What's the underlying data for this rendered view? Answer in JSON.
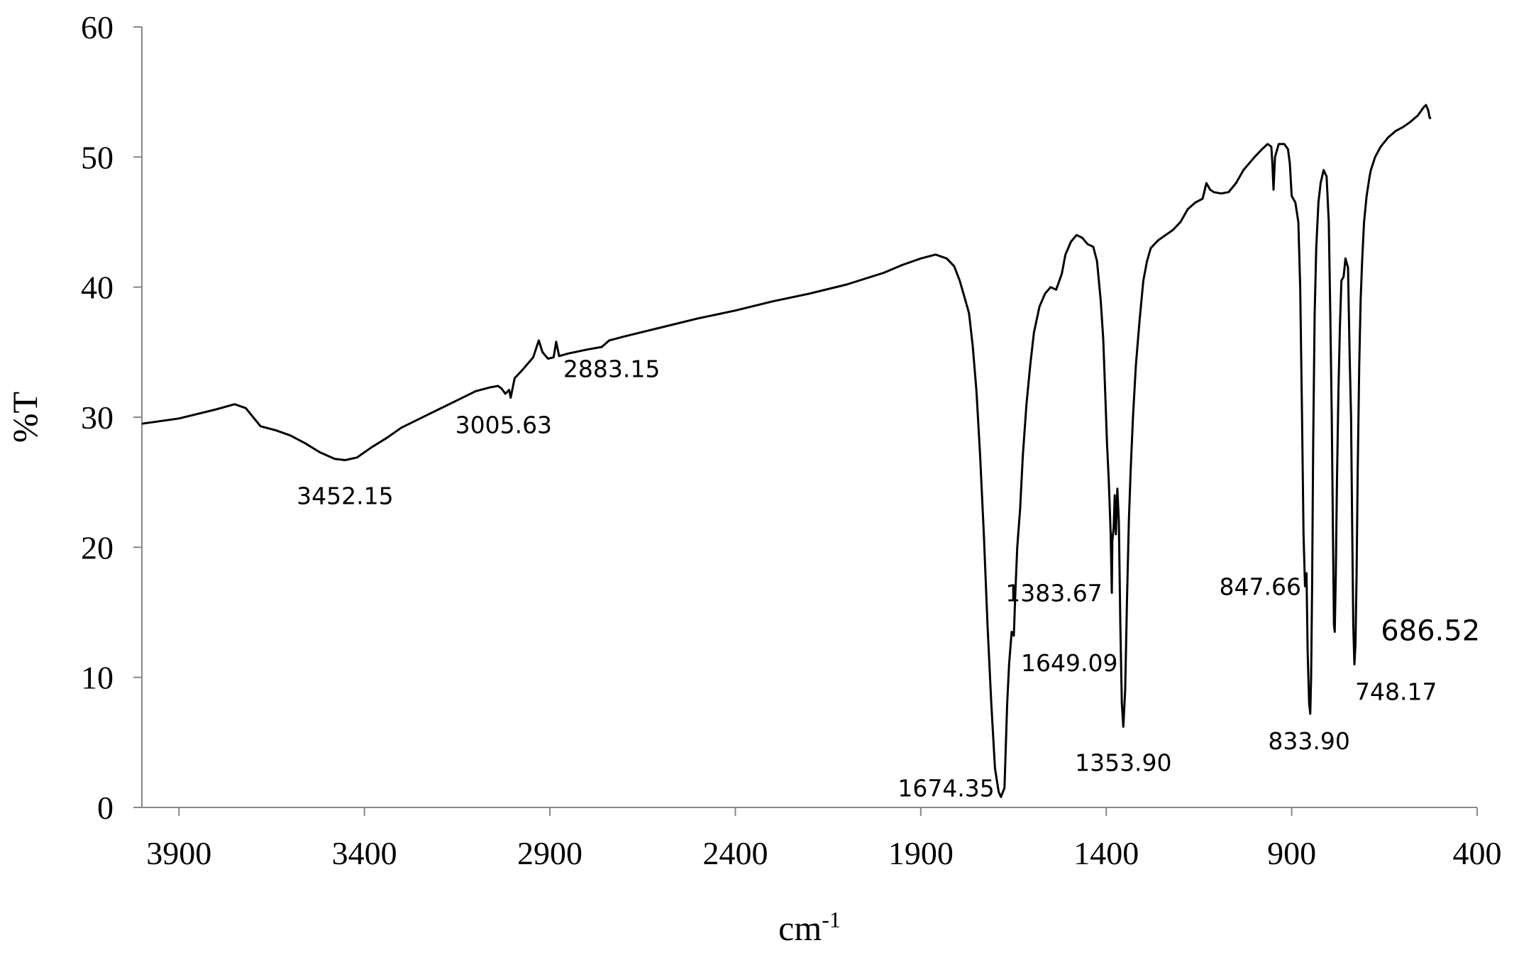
{
  "chart_data": {
    "type": "line",
    "xlabel": "cm",
    "xlabel_superscript": "-1",
    "ylabel": "%T",
    "xlim": [
      4000,
      400
    ],
    "ylim": [
      0,
      60
    ],
    "x_reversed": true,
    "grid": false,
    "x_ticks": [
      3900,
      3400,
      2900,
      2400,
      1900,
      1400,
      900,
      400
    ],
    "y_ticks": [
      0,
      10,
      20,
      30,
      40,
      50,
      60
    ],
    "series": [
      {
        "points": [
          [
            4000,
            29.5
          ],
          [
            3900,
            29.9
          ],
          [
            3800,
            30.6
          ],
          [
            3750,
            31.0
          ],
          [
            3720,
            30.7
          ],
          [
            3700,
            30.0
          ],
          [
            3680,
            29.3
          ],
          [
            3640,
            29.0
          ],
          [
            3600,
            28.6
          ],
          [
            3560,
            28.0
          ],
          [
            3520,
            27.3
          ],
          [
            3480,
            26.8
          ],
          [
            3452.15,
            26.7
          ],
          [
            3420,
            26.9
          ],
          [
            3380,
            27.7
          ],
          [
            3340,
            28.4
          ],
          [
            3300,
            29.2
          ],
          [
            3250,
            29.9
          ],
          [
            3200,
            30.6
          ],
          [
            3150,
            31.3
          ],
          [
            3100,
            32.0
          ],
          [
            3060,
            32.3
          ],
          [
            3040,
            32.4
          ],
          [
            3030,
            32.2
          ],
          [
            3020,
            31.8
          ],
          [
            3010,
            32.1
          ],
          [
            3005.63,
            31.5
          ],
          [
            2995,
            33.0
          ],
          [
            2975,
            33.6
          ],
          [
            2960,
            34.1
          ],
          [
            2945,
            34.6
          ],
          [
            2930,
            35.9
          ],
          [
            2920,
            35.0
          ],
          [
            2905,
            34.5
          ],
          [
            2890,
            34.6
          ],
          [
            2883.15,
            35.8
          ],
          [
            2875,
            34.7
          ],
          [
            2850,
            34.9
          ],
          [
            2800,
            35.2
          ],
          [
            2760,
            35.4
          ],
          [
            2740,
            35.9
          ],
          [
            2700,
            36.2
          ],
          [
            2600,
            36.9
          ],
          [
            2500,
            37.6
          ],
          [
            2400,
            38.2
          ],
          [
            2300,
            38.9
          ],
          [
            2200,
            39.5
          ],
          [
            2100,
            40.2
          ],
          [
            2000,
            41.1
          ],
          [
            1950,
            41.7
          ],
          [
            1900,
            42.2
          ],
          [
            1860,
            42.5
          ],
          [
            1830,
            42.2
          ],
          [
            1810,
            41.6
          ],
          [
            1795,
            40.5
          ],
          [
            1780,
            39.0
          ],
          [
            1770,
            38.0
          ],
          [
            1760,
            35.5
          ],
          [
            1750,
            32.0
          ],
          [
            1740,
            27.0
          ],
          [
            1730,
            21.0
          ],
          [
            1720,
            14.0
          ],
          [
            1710,
            8.0
          ],
          [
            1700,
            3.0
          ],
          [
            1690,
            1.2
          ],
          [
            1684,
            0.8
          ],
          [
            1674.35,
            1.5
          ],
          [
            1667,
            8.0
          ],
          [
            1662,
            11.0
          ],
          [
            1655,
            13.5
          ],
          [
            1649.09,
            13.2
          ],
          [
            1645,
            16.5
          ],
          [
            1640,
            20.0
          ],
          [
            1632,
            23.0
          ],
          [
            1625,
            27.0
          ],
          [
            1615,
            31.0
          ],
          [
            1605,
            34.0
          ],
          [
            1595,
            36.5
          ],
          [
            1580,
            38.5
          ],
          [
            1565,
            39.5
          ],
          [
            1550,
            40.0
          ],
          [
            1535,
            39.8
          ],
          [
            1520,
            41.0
          ],
          [
            1510,
            42.5
          ],
          [
            1495,
            43.5
          ],
          [
            1480,
            44.0
          ],
          [
            1465,
            43.8
          ],
          [
            1450,
            43.3
          ],
          [
            1435,
            43.1
          ],
          [
            1425,
            42.0
          ],
          [
            1415,
            39.0
          ],
          [
            1408,
            36.0
          ],
          [
            1403,
            32.0
          ],
          [
            1398,
            28.0
          ],
          [
            1393,
            25.0
          ],
          [
            1388,
            21.0
          ],
          [
            1385,
            16.5
          ],
          [
            1383.67,
            20.5
          ],
          [
            1380,
            21.5
          ],
          [
            1377,
            24.0
          ],
          [
            1374,
            21.0
          ],
          [
            1370,
            24.5
          ],
          [
            1366,
            22.0
          ],
          [
            1362,
            14.0
          ],
          [
            1358,
            8.0
          ],
          [
            1353.9,
            6.2
          ],
          [
            1349,
            9.0
          ],
          [
            1344,
            16.0
          ],
          [
            1339,
            22.0
          ],
          [
            1334,
            26.0
          ],
          [
            1328,
            30.0
          ],
          [
            1320,
            34.0
          ],
          [
            1310,
            37.5
          ],
          [
            1300,
            40.5
          ],
          [
            1290,
            42.0
          ],
          [
            1280,
            43.0
          ],
          [
            1260,
            43.6
          ],
          [
            1240,
            44.0
          ],
          [
            1220,
            44.4
          ],
          [
            1200,
            45.0
          ],
          [
            1180,
            46.0
          ],
          [
            1160,
            46.5
          ],
          [
            1140,
            46.8
          ],
          [
            1130,
            48.0
          ],
          [
            1120,
            47.5
          ],
          [
            1110,
            47.3
          ],
          [
            1090,
            47.2
          ],
          [
            1070,
            47.3
          ],
          [
            1050,
            48.0
          ],
          [
            1030,
            49.0
          ],
          [
            1000,
            50.0
          ],
          [
            980,
            50.6
          ],
          [
            965,
            51.0
          ],
          [
            955,
            50.8
          ],
          [
            952,
            49.5
          ],
          [
            949,
            47.5
          ],
          [
            945,
            50.0
          ],
          [
            935,
            51.0
          ],
          [
            920,
            51.0
          ],
          [
            910,
            50.6
          ],
          [
            905,
            49.5
          ],
          [
            900,
            47.0
          ],
          [
            890,
            46.5
          ],
          [
            882,
            45.0
          ],
          [
            877,
            40.0
          ],
          [
            872,
            30.0
          ],
          [
            868,
            21.0
          ],
          [
            864,
            17.0
          ],
          [
            860,
            18.0
          ],
          [
            857,
            12.0
          ],
          [
            853,
            8.0
          ],
          [
            850,
            7.2
          ],
          [
            847.66,
            10.0
          ],
          [
            845,
            17.0
          ],
          [
            842,
            28.0
          ],
          [
            838,
            38.0
          ],
          [
            833.9,
            43.0
          ],
          [
            828,
            46.5
          ],
          [
            822,
            48.0
          ],
          [
            814,
            49.0
          ],
          [
            806,
            48.5
          ],
          [
            800,
            45.0
          ],
          [
            796,
            38.0
          ],
          [
            792,
            30.0
          ],
          [
            789,
            22.0
          ],
          [
            786,
            14.0
          ],
          [
            784,
            13.5
          ],
          [
            781,
            18.0
          ],
          [
            778,
            25.0
          ],
          [
            774,
            32.0
          ],
          [
            770,
            37.0
          ],
          [
            766,
            40.5
          ],
          [
            760,
            40.8
          ],
          [
            755,
            42.2
          ],
          [
            748.17,
            41.5
          ],
          [
            744,
            35.0
          ],
          [
            740,
            30.0
          ],
          [
            737,
            22.0
          ],
          [
            734,
            14.0
          ],
          [
            731,
            11.0
          ],
          [
            728,
            12.5
          ],
          [
            725,
            18.0
          ],
          [
            722,
            26.0
          ],
          [
            718,
            34.0
          ],
          [
            714,
            39.0
          ],
          [
            710,
            42.0
          ],
          [
            705,
            45.0
          ],
          [
            698,
            47.0
          ],
          [
            690,
            48.5
          ],
          [
            686.52,
            49.0
          ],
          [
            675,
            50.0
          ],
          [
            660,
            50.8
          ],
          [
            640,
            51.5
          ],
          [
            620,
            52.0
          ],
          [
            600,
            52.3
          ],
          [
            580,
            52.7
          ],
          [
            560,
            53.2
          ],
          [
            545,
            53.8
          ],
          [
            538,
            54.0
          ],
          [
            532,
            53.6
          ],
          [
            528,
            53.0
          ],
          [
            524,
            53.0
          ]
        ]
      }
    ],
    "annotations": [
      {
        "text": "3452.15",
        "x": 3452.15,
        "y": 26.7,
        "anchor": "below-center"
      },
      {
        "text": "3005.63",
        "x": 3005.63,
        "y": 31.5,
        "anchor": "below-left"
      },
      {
        "text": "2883.15",
        "x": 2883.15,
        "y": 35.8,
        "anchor": "below-right"
      },
      {
        "text": "1674.35",
        "x": 1674.35,
        "y": 1.5,
        "anchor": "left"
      },
      {
        "text": "1649.09",
        "x": 1649.09,
        "y": 13.2,
        "anchor": "below-right"
      },
      {
        "text": "1383.67",
        "x": 1383.67,
        "y": 16.5,
        "anchor": "left"
      },
      {
        "text": "1353.90",
        "x": 1353.9,
        "y": 6.2,
        "anchor": "below-center"
      },
      {
        "text": "847.66",
        "x": 847.66,
        "y": 17.0,
        "anchor": "left"
      },
      {
        "text": "833.90",
        "x": 833.9,
        "y": 7.2,
        "anchor": "below-left"
      },
      {
        "text": "748.17",
        "x": 748.17,
        "y": 11.0,
        "anchor": "below-right"
      },
      {
        "text": "686.52",
        "x": 686.52,
        "y": 13.5,
        "anchor": "right",
        "emphasis": true
      }
    ]
  }
}
